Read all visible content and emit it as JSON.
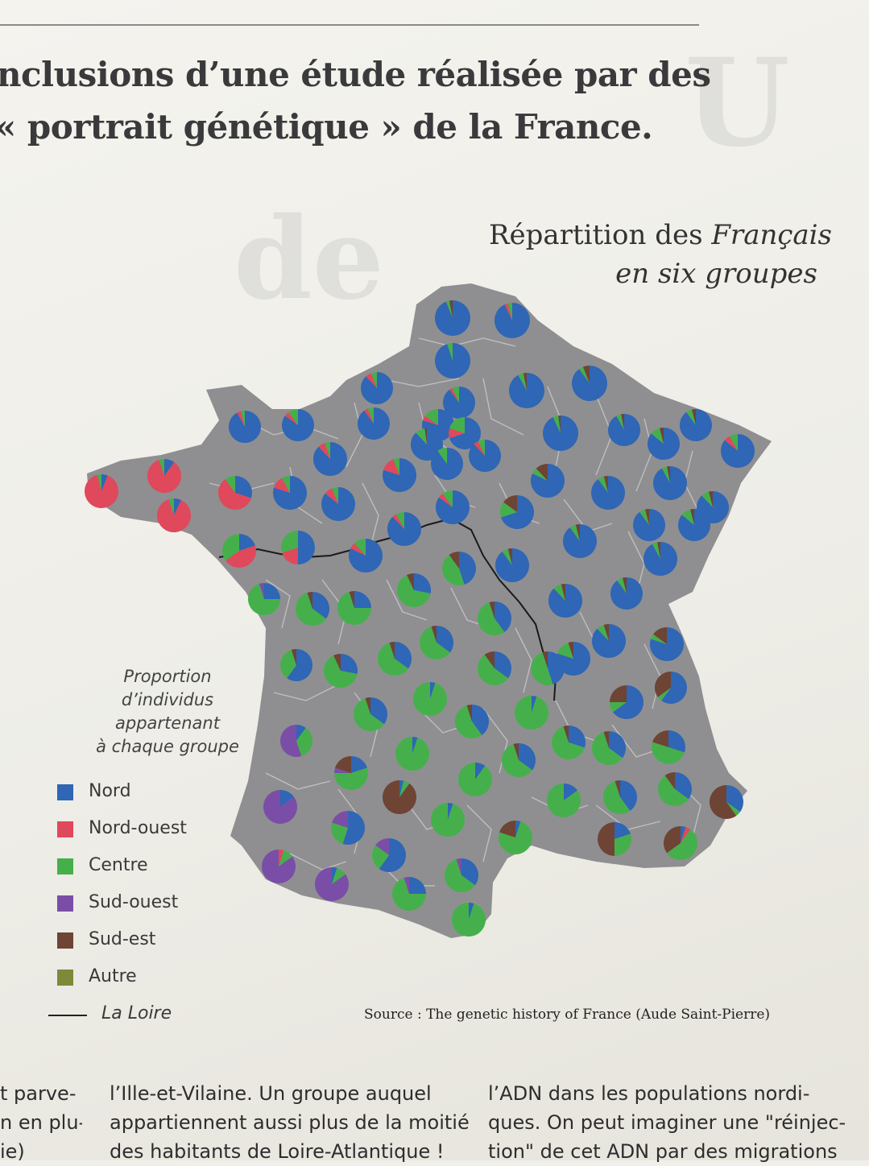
{
  "article": {
    "headline_line1": "nclusions d’une étude réalisée par des",
    "headline_line2": "« portrait génétique » de la France."
  },
  "map": {
    "title_line1_prefix": "Répartition des",
    "title_line1_emph": "Français",
    "title_line2": "en six groupes",
    "source": "Source : The genetic history of France (Aude Saint-Pierre)",
    "colors": {
      "land": "#8f8f91",
      "borders": "#c4c4c6",
      "Nord": "#2f66b5",
      "Nord-ouest": "#e0485c",
      "Centre": "#45b04b",
      "Sud-ouest": "#7a4ea6",
      "Sud-est": "#6e4434",
      "Autre": "#7d8a3a",
      "La Loire": "#1a1a1a"
    }
  },
  "legend": {
    "title_lines": [
      "Proportion",
      "d’individus",
      "appartenant",
      "à chaque groupe"
    ],
    "items": [
      {
        "label": "Nord",
        "color": "#2f66b5"
      },
      {
        "label": "Nord-ouest",
        "color": "#e0485c"
      },
      {
        "label": "Centre",
        "color": "#45b04b"
      },
      {
        "label": "Sud-ouest",
        "color": "#7a4ea6"
      },
      {
        "label": "Sud-est",
        "color": "#6e4434"
      },
      {
        "label": "Autre",
        "color": "#7d8a3a"
      }
    ],
    "loire_label": "La Loire"
  },
  "body_text": {
    "col1": [
      "t parve-",
      "n en plu-",
      "ie)"
    ],
    "col2": [
      "l’Ille-et-Vilaine. Un groupe auquel",
      "appartiennent aussi plus de la moitié",
      "des habitants de Loire-Atlantique !"
    ],
    "col3": [
      "l’ADN dans les populations nordi-",
      "ques. On peut imaginer une \"réinjec-",
      "tion\" de cet ADN par des migrations"
    ]
  }
}
